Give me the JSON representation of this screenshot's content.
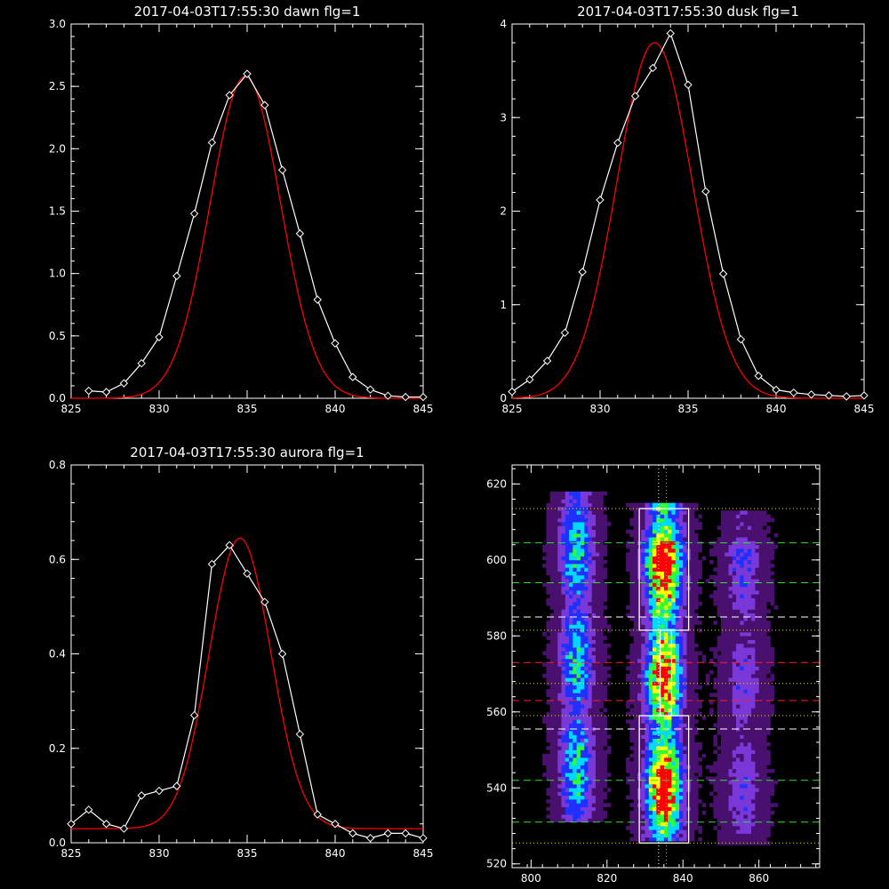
{
  "chart_data": [
    {
      "type": "line",
      "title": "2017-04-03T17:55:30 dawn flg=1",
      "xlim": [
        825,
        845
      ],
      "ylim": [
        0,
        3
      ],
      "xticks": [
        825,
        830,
        835,
        840,
        845
      ],
      "xtick_labels": [
        "825",
        "830",
        "835",
        "840",
        "845"
      ],
      "yticks": [
        0,
        0.5,
        1,
        1.5,
        2,
        2.5,
        3
      ],
      "ytick_labels": [
        "0.0",
        "0.5",
        "1.0",
        "1.5",
        "2.0",
        "2.5",
        "3.0"
      ],
      "series": [
        {
          "kind": "measured",
          "color": "#ffffff",
          "marker": "diamond",
          "x": [
            826,
            827,
            828,
            829,
            830,
            831,
            832,
            833,
            834,
            835,
            836,
            837,
            838,
            839,
            840,
            841,
            842,
            843,
            844,
            845
          ],
          "y": [
            0.06,
            0.05,
            0.12,
            0.28,
            0.49,
            0.98,
            1.48,
            2.05,
            2.43,
            2.6,
            2.35,
            1.83,
            1.32,
            0.79,
            0.44,
            0.17,
            0.07,
            0.02,
            0.01,
            0.01
          ]
        },
        {
          "kind": "fit",
          "color": "#ff0000",
          "model": "gaussian",
          "amplitude": 2.58,
          "center": 834.9,
          "sigma": 2.0,
          "offset": 0.0
        }
      ]
    },
    {
      "type": "line",
      "title": "2017-04-03T17:55:30 dusk flg=1",
      "xlim": [
        825,
        845
      ],
      "ylim": [
        0,
        4
      ],
      "xticks": [
        825,
        830,
        835,
        840,
        845
      ],
      "xtick_labels": [
        "825",
        "830",
        "835",
        "840",
        "845"
      ],
      "yticks": [
        0,
        1,
        2,
        3,
        4
      ],
      "ytick_labels": [
        "0",
        "1",
        "2",
        "3",
        "4"
      ],
      "series": [
        {
          "kind": "measured",
          "color": "#ffffff",
          "marker": "diamond",
          "x": [
            825,
            826,
            827,
            828,
            829,
            830,
            831,
            832,
            833,
            834,
            835,
            836,
            837,
            838,
            839,
            840,
            841,
            842,
            843,
            844,
            845
          ],
          "y": [
            0.07,
            0.2,
            0.4,
            0.7,
            1.35,
            2.12,
            2.73,
            3.23,
            3.53,
            3.9,
            3.35,
            2.21,
            1.33,
            0.63,
            0.24,
            0.09,
            0.06,
            0.04,
            0.03,
            0.02,
            0.03
          ]
        },
        {
          "kind": "fit",
          "color": "#ff0000",
          "model": "gaussian",
          "amplitude": 3.8,
          "center": 833.1,
          "sigma": 2.15,
          "offset": 0.0
        }
      ]
    },
    {
      "type": "line",
      "title": "2017-04-03T17:55:30 aurora flg=1",
      "xlim": [
        825,
        845
      ],
      "ylim": [
        0,
        0.8
      ],
      "xticks": [
        825,
        830,
        835,
        840,
        845
      ],
      "xtick_labels": [
        "825",
        "830",
        "835",
        "840",
        "845"
      ],
      "yticks": [
        0,
        0.2,
        0.4,
        0.6,
        0.8
      ],
      "ytick_labels": [
        "0.0",
        "0.2",
        "0.4",
        "0.6",
        "0.8"
      ],
      "series": [
        {
          "kind": "measured",
          "color": "#ffffff",
          "marker": "diamond",
          "x": [
            825,
            826,
            827,
            828,
            829,
            830,
            831,
            832,
            833,
            834,
            835,
            836,
            837,
            838,
            839,
            840,
            841,
            842,
            843,
            844,
            845
          ],
          "y": [
            0.04,
            0.07,
            0.04,
            0.03,
            0.1,
            0.11,
            0.12,
            0.27,
            0.59,
            0.63,
            0.57,
            0.51,
            0.4,
            0.23,
            0.06,
            0.04,
            0.02,
            0.01,
            0.02,
            0.02,
            0.01
          ]
        },
        {
          "kind": "fit",
          "color": "#ff0000",
          "model": "gaussian",
          "amplitude": 0.615,
          "center": 834.6,
          "sigma": 1.75,
          "offset": 0.03
        }
      ]
    },
    {
      "type": "heatmap",
      "title": "",
      "xlim": [
        795,
        876
      ],
      "ylim": [
        519,
        625
      ],
      "xticks": [
        800,
        820,
        840,
        860
      ],
      "xtick_labels": [
        "800",
        "820",
        "840",
        "860"
      ],
      "yticks": [
        520,
        540,
        560,
        580,
        600,
        620
      ],
      "ytick_labels": [
        "520",
        "540",
        "560",
        "580",
        "600",
        "620"
      ],
      "colormap": [
        "#000000",
        "#4a1070",
        "#7a38d8",
        "#2030ff",
        "#00d8ff",
        "#30ff30",
        "#ffff00",
        "#ff0000"
      ],
      "emission_bands": [
        {
          "x_center": 811.5,
          "x_width": 3.3,
          "y_min": 531,
          "y_max": 617,
          "strength": 0.58
        },
        {
          "x_center": 834.5,
          "x_width": 3.5,
          "y_min": 526,
          "y_max": 614,
          "strength": 1.0
        },
        {
          "x_center": 855.5,
          "x_width": 3.5,
          "y_min": 525,
          "y_max": 612,
          "strength": 0.3
        }
      ],
      "boxes": [
        {
          "x": [
            828.5,
            841.5
          ],
          "y": [
            581.5,
            613.5
          ],
          "color": "#ffffff"
        },
        {
          "x": [
            828.5,
            841.5
          ],
          "y": [
            525.5,
            559
          ],
          "color": "#ffffff"
        },
        {
          "x": [
            834,
            837
          ],
          "y": [
            559,
            581.5
          ],
          "color": "#ffffff"
        }
      ],
      "hlines": [
        {
          "y": 613.5,
          "color": "#e0e040",
          "style": "dotted"
        },
        {
          "y": 581.5,
          "color": "#e0e040",
          "style": "dotted"
        },
        {
          "y": 567.5,
          "color": "#e0e040",
          "style": "dotted"
        },
        {
          "y": 559,
          "color": "#e0e040",
          "style": "dotted"
        },
        {
          "y": 525.5,
          "color": "#e0e040",
          "style": "dotted"
        },
        {
          "y": 604.5,
          "color": "#30dd30",
          "style": "dashed"
        },
        {
          "y": 594,
          "color": "#30dd30",
          "style": "dashed"
        },
        {
          "y": 585,
          "color": "#ffffff",
          "style": "dashed"
        },
        {
          "y": 573,
          "color": "#ff2020",
          "style": "dashed"
        },
        {
          "y": 563,
          "color": "#ff2020",
          "style": "dashed"
        },
        {
          "y": 555.5,
          "color": "#ffffff",
          "style": "dashed"
        },
        {
          "y": 542,
          "color": "#30dd30",
          "style": "dashed"
        },
        {
          "y": 531,
          "color": "#30dd30",
          "style": "dashed"
        }
      ],
      "vlines": [
        {
          "x": 833.6,
          "color": "#ffffff",
          "style": "dotted"
        },
        {
          "x": 835.6,
          "color": "#ff60ff",
          "style": "dotted"
        }
      ]
    }
  ]
}
